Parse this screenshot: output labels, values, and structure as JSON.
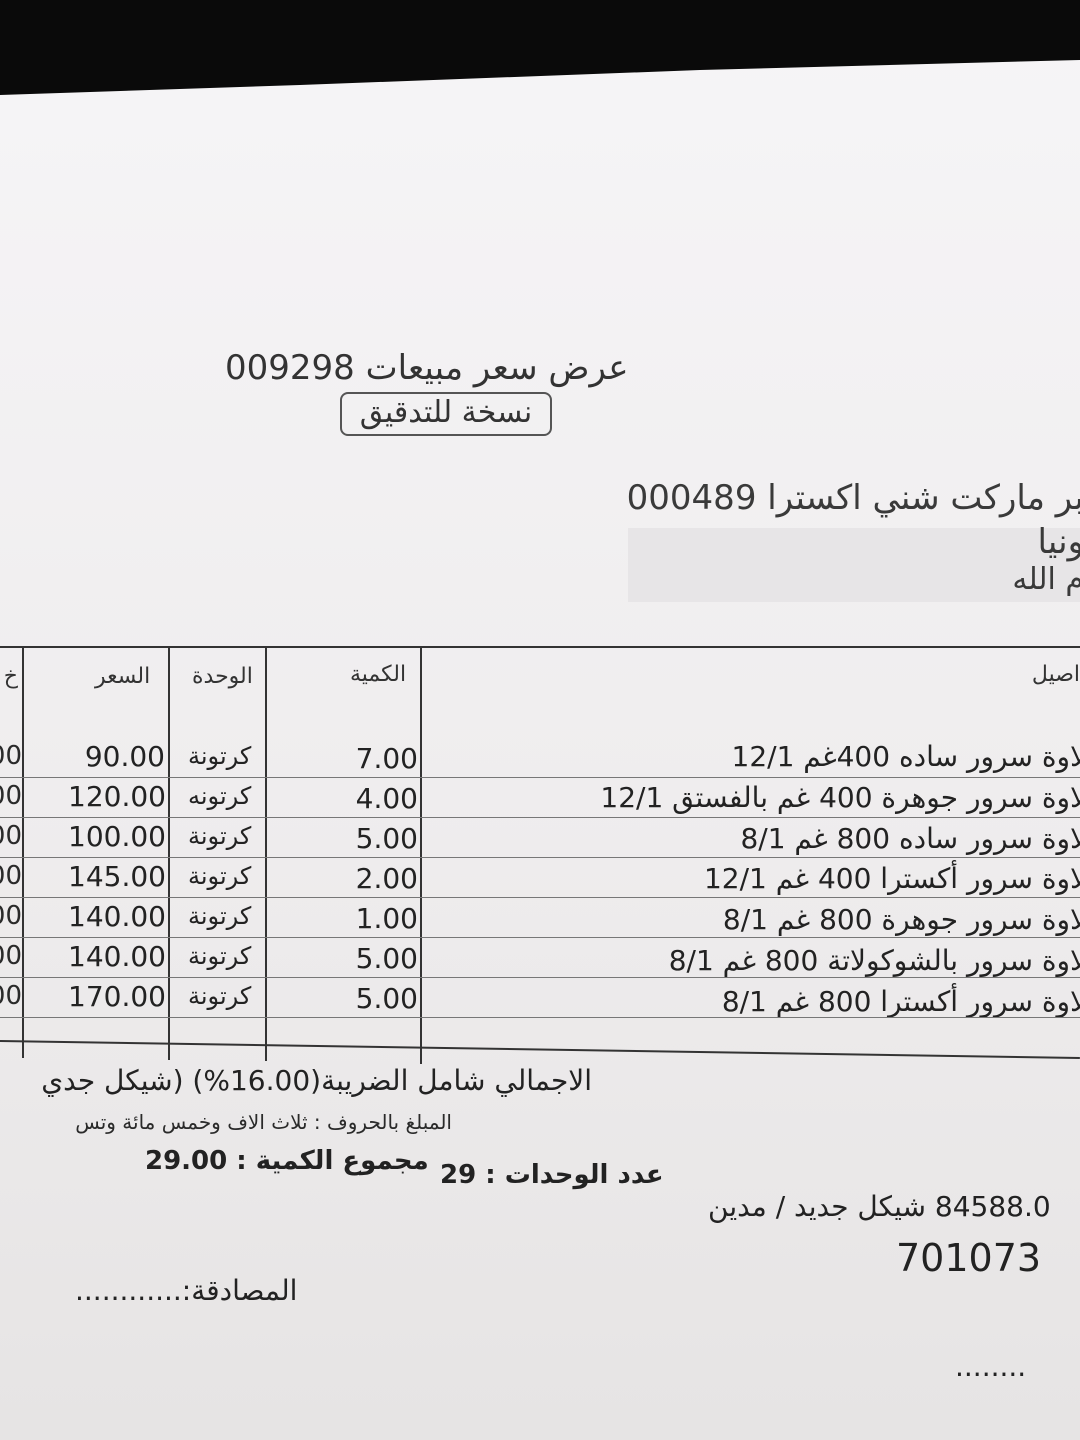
{
  "header": {
    "title": "عرض سعر مبيعات 009298",
    "copy_stamp": "نسخة للتدقيق"
  },
  "customer": {
    "line1": "بر ماركت شني اكسترا 000489",
    "line2": "ونيا",
    "line3": "م الله"
  },
  "table": {
    "headers": {
      "left_clipped": "خ",
      "price": "السعر",
      "unit": "الوحدة",
      "quantity": "الكمية",
      "details": "اصيل"
    },
    "rows": [
      {
        "left_clipped": "00",
        "price": "90.00",
        "unit": "كرتونة",
        "quantity": "7.00",
        "description": "لاوة سرور ساده 400غم 12/1"
      },
      {
        "left_clipped": "00",
        "price": "120.00",
        "unit": "كرتونه",
        "quantity": "4.00",
        "description": "لاوة سرور جوهرة 400 غم بالفستق 12/1"
      },
      {
        "left_clipped": "000",
        "price": "100.00",
        "unit": "كرتونة",
        "quantity": "5.00",
        "description": "لاوة سرور ساده 800 غم 8/1"
      },
      {
        "left_clipped": "000",
        "price": "145.00",
        "unit": "كرتونة",
        "quantity": "2.00",
        "description": "لاوة سرور أكسترا 400 غم 12/1"
      },
      {
        "left_clipped": "000",
        "price": "140.00",
        "unit": "كرتونة",
        "quantity": "1.00",
        "description": "لاوة سرور جوهرة 800 غم 8/1"
      },
      {
        "left_clipped": "000",
        "price": "140.00",
        "unit": "كرتونة",
        "quantity": "5.00",
        "description": "لاوة سرور بالشوكولاتة 800 غم 8/1"
      },
      {
        "left_clipped": "000",
        "price": "170.00",
        "unit": "كرتونة",
        "quantity": "5.00",
        "description": "لاوة سرور أكسترا 800 غم 8/1"
      }
    ]
  },
  "totals": {
    "total_with_tax": "الاجمالي شامل الضريبة(16.00%) (شيكل جدي",
    "amount_in_words": "المبلغ بالحروف : ثلاث الاف وخمس مائة وتس",
    "units_label": "عدد الوحدات : 29",
    "quantity_total": "مجموع الكمية : 29.00",
    "balance": "84588.0 شيكل جديد / مدين",
    "account": "701073",
    "approval": "المصادقة:............",
    "signature_dots": "........"
  }
}
